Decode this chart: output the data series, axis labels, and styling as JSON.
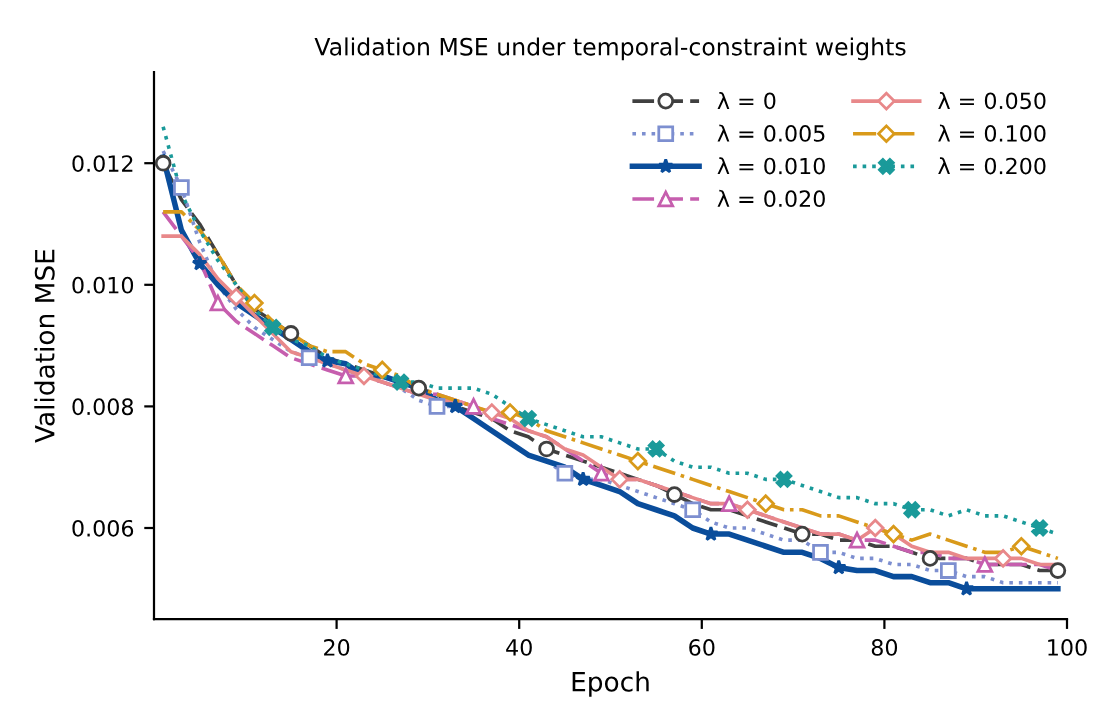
{
  "chart_data": {
    "type": "line",
    "title": "Validation MSE under temporal-constraint weights",
    "xlabel": "Epoch",
    "ylabel": "Validation MSE",
    "x": [
      1,
      3,
      5,
      7,
      9,
      11,
      13,
      15,
      17,
      19,
      21,
      23,
      25,
      27,
      29,
      31,
      33,
      35,
      37,
      39,
      41,
      43,
      45,
      47,
      49,
      51,
      53,
      55,
      57,
      59,
      61,
      63,
      65,
      67,
      69,
      71,
      73,
      75,
      77,
      79,
      81,
      83,
      85,
      87,
      89,
      91,
      93,
      95,
      97,
      99
    ],
    "xlim": [
      0,
      100
    ],
    "xticks": [
      20,
      40,
      60,
      80,
      100
    ],
    "ylim": [
      0.0045,
      0.0135
    ],
    "yticks": [
      0.006,
      0.008,
      {
        "value": 0.01,
        "label": "0.010"
      },
      0.012
    ],
    "grid": false,
    "legend": "top right",
    "series": [
      {
        "name": "λ = 0",
        "color": "#404040",
        "line_style": "dashed",
        "values": [
          0.012,
          0.0114,
          0.011,
          0.0105,
          0.01,
          0.0096,
          0.0094,
          0.0092,
          0.009,
          0.0088,
          0.0087,
          0.0086,
          0.0085,
          0.0084,
          0.0083,
          0.0082,
          0.008,
          0.0079,
          0.0078,
          0.0076,
          0.0075,
          0.0073,
          0.0072,
          0.0071,
          0.007,
          0.0069,
          0.0068,
          0.0067,
          0.00655,
          0.0064,
          0.0063,
          0.0063,
          0.0062,
          0.0061,
          0.006,
          0.0059,
          0.0059,
          0.0058,
          0.0058,
          0.0057,
          0.0057,
          0.0056,
          0.0055,
          0.0055,
          0.0055,
          0.0054,
          0.0054,
          0.0054,
          0.0053,
          0.0053
        ]
      },
      {
        "type": "scatter",
        "color": "#404040",
        "marker": "circle",
        "x": [
          1,
          15,
          29,
          43,
          57,
          71,
          85,
          99
        ],
        "values": [
          0.012,
          0.0092,
          0.0083,
          0.0073,
          0.00655,
          0.0059,
          0.0055,
          0.0053
        ]
      },
      {
        "name": "λ = 0.005",
        "color": "#7d8fd0",
        "line_style": "dotted",
        "values": [
          0.0122,
          0.0116,
          0.0107,
          0.01,
          0.0096,
          0.0093,
          0.0091,
          0.0089,
          0.0088,
          0.0087,
          0.0086,
          0.0085,
          0.0084,
          0.0083,
          0.0081,
          0.008,
          0.008,
          0.0078,
          0.0076,
          0.0074,
          0.0072,
          0.0071,
          0.0069,
          0.0068,
          0.0068,
          0.0067,
          0.0066,
          0.0065,
          0.0064,
          0.0063,
          0.0061,
          0.006,
          0.006,
          0.0059,
          0.0058,
          0.0058,
          0.0056,
          0.0056,
          0.0055,
          0.0055,
          0.0054,
          0.0054,
          0.0053,
          0.0053,
          0.0052,
          0.0052,
          0.0051,
          0.0051,
          0.0051,
          0.0051
        ]
      },
      {
        "type": "scatter",
        "color": "#7d8fd0",
        "marker": "square",
        "x": [
          3,
          17,
          31,
          45,
          59,
          73,
          87
        ],
        "values": [
          0.0116,
          0.0088,
          0.008,
          0.0069,
          0.0063,
          0.0056,
          0.0053
        ]
      },
      {
        "name": "λ = 0.010",
        "color": "#0a4d9b",
        "line_style": "solid",
        "values": [
          0.0121,
          0.0109,
          0.01035,
          0.01,
          0.0097,
          0.0095,
          0.0093,
          0.0091,
          0.0089,
          0.00875,
          0.0087,
          0.0085,
          0.0085,
          0.0084,
          0.0083,
          0.0081,
          0.008,
          0.0078,
          0.0076,
          0.0074,
          0.0072,
          0.0071,
          0.007,
          0.0068,
          0.0067,
          0.0066,
          0.0064,
          0.0063,
          0.0062,
          0.006,
          0.0059,
          0.0059,
          0.0058,
          0.0057,
          0.0056,
          0.0056,
          0.0055,
          0.00535,
          0.0053,
          0.0053,
          0.0052,
          0.0052,
          0.0051,
          0.0051,
          0.005,
          0.005,
          0.005,
          0.005,
          0.005,
          0.005
        ]
      },
      {
        "type": "scatter",
        "color": "#0a4d9b",
        "marker": "star",
        "x": [
          5,
          19,
          33,
          47,
          61,
          75,
          89
        ],
        "values": [
          0.01035,
          0.00875,
          0.008,
          0.0068,
          0.0059,
          0.00535,
          0.005
        ]
      },
      {
        "name": "λ = 0.020",
        "color": "#c65eae",
        "line_style": "dashed",
        "values": [
          0.0112,
          0.0108,
          0.0104,
          0.0097,
          0.0094,
          0.0092,
          0.009,
          0.0088,
          0.0087,
          0.0086,
          0.0085,
          0.0085,
          0.0084,
          0.0083,
          0.0082,
          0.0082,
          0.0081,
          0.008,
          0.0078,
          0.0077,
          0.0076,
          0.0075,
          0.0073,
          0.0071,
          0.0069,
          0.0068,
          0.0068,
          0.0067,
          0.0066,
          0.0065,
          0.0064,
          0.0064,
          0.0063,
          0.0062,
          0.0061,
          0.006,
          0.0059,
          0.0059,
          0.0058,
          0.0058,
          0.0057,
          0.0056,
          0.0056,
          0.0055,
          0.0055,
          0.0054,
          0.0054,
          0.0054,
          0.0054,
          0.0053
        ]
      },
      {
        "type": "scatter",
        "color": "#c65eae",
        "marker": "triangle",
        "x": [
          7,
          21,
          35,
          49,
          63,
          77,
          91
        ],
        "values": [
          0.0097,
          0.0085,
          0.008,
          0.0069,
          0.0064,
          0.0058,
          0.0054
        ]
      },
      {
        "name": "λ = 0.050",
        "color": "#e8888a",
        "line_style": "solid",
        "values": [
          0.0108,
          0.0108,
          0.0105,
          0.0101,
          0.0098,
          0.0095,
          0.0092,
          0.0089,
          0.0088,
          0.0087,
          0.0086,
          0.0085,
          0.0084,
          0.0083,
          0.0082,
          0.0081,
          0.0081,
          0.008,
          0.0079,
          0.0078,
          0.0076,
          0.0075,
          0.0073,
          0.0072,
          0.007,
          0.0068,
          0.0068,
          0.0067,
          0.0066,
          0.0065,
          0.0064,
          0.0064,
          0.0063,
          0.0062,
          0.0061,
          0.006,
          0.0059,
          0.0059,
          0.0058,
          0.006,
          0.0059,
          0.0057,
          0.0056,
          0.0056,
          0.0055,
          0.0055,
          0.0055,
          0.0055,
          0.0054,
          0.0054
        ]
      },
      {
        "type": "scatter",
        "color": "#e8888a",
        "marker": "diamond",
        "x": [
          9,
          23,
          37,
          51,
          65,
          79,
          93
        ],
        "values": [
          0.0098,
          0.0085,
          0.0079,
          0.0068,
          0.0063,
          0.006,
          0.0055
        ]
      },
      {
        "name": "λ = 0.100",
        "color": "#d99a1a",
        "line_style": "dashdot",
        "values": [
          0.0112,
          0.0112,
          0.0109,
          0.0105,
          0.01,
          0.0097,
          0.0094,
          0.0092,
          0.009,
          0.0089,
          0.0089,
          0.0087,
          0.0086,
          0.0085,
          0.0083,
          0.0082,
          0.0081,
          0.008,
          0.0079,
          0.0079,
          0.0078,
          0.0076,
          0.0075,
          0.0074,
          0.0073,
          0.0072,
          0.0071,
          0.007,
          0.0069,
          0.0068,
          0.0067,
          0.0066,
          0.0065,
          0.0064,
          0.0063,
          0.0063,
          0.0062,
          0.0062,
          0.0061,
          0.006,
          0.0059,
          0.0058,
          0.0059,
          0.0058,
          0.0057,
          0.0056,
          0.0056,
          0.0057,
          0.0056,
          0.0055
        ]
      },
      {
        "type": "scatter",
        "color": "#d99a1a",
        "marker": "diamond",
        "x": [
          11,
          25,
          39,
          53,
          67,
          81,
          95
        ],
        "values": [
          0.0097,
          0.0086,
          0.0079,
          0.0071,
          0.0064,
          0.0059,
          0.0057
        ]
      },
      {
        "name": "λ = 0.200",
        "color": "#1a9a9a",
        "line_style": "dotted",
        "values": [
          0.0126,
          0.0115,
          0.0109,
          0.0104,
          0.01,
          0.0096,
          0.0093,
          0.0091,
          0.009,
          0.0088,
          0.0087,
          0.0086,
          0.0085,
          0.0084,
          0.0084,
          0.0083,
          0.0083,
          0.0083,
          0.0082,
          0.008,
          0.0078,
          0.0077,
          0.0076,
          0.0075,
          0.0075,
          0.0074,
          0.0073,
          0.0073,
          0.0071,
          0.007,
          0.007,
          0.0069,
          0.0069,
          0.0068,
          0.0068,
          0.0067,
          0.0066,
          0.0065,
          0.0065,
          0.0064,
          0.0064,
          0.0063,
          0.0063,
          0.0062,
          0.0063,
          0.0062,
          0.0062,
          0.0061,
          0.006,
          0.0059
        ]
      },
      {
        "type": "scatter",
        "color": "#1a9a9a",
        "marker": "cross",
        "x": [
          13,
          27,
          41,
          55,
          69,
          83,
          97
        ],
        "values": [
          0.0093,
          0.0084,
          0.0078,
          0.0073,
          0.0068,
          0.0063,
          0.006
        ]
      }
    ]
  }
}
